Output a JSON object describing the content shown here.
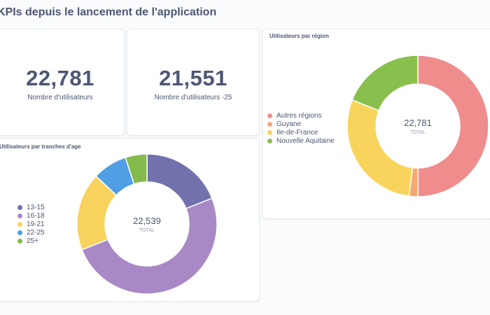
{
  "page": {
    "title": "KPIs depuis le lancement de l'application"
  },
  "kpis": [
    {
      "value": "22,781",
      "label": "Nombre d'utilisateurs"
    },
    {
      "value": "21,551",
      "label": "Nombre d'utilisateurs -25"
    }
  ],
  "age_chart": {
    "title": "Utilisateurs par tranches d'age",
    "total": "22,539",
    "total_label": "TOTAL",
    "legend": [
      {
        "label": "13-15",
        "color": "#7172ad"
      },
      {
        "label": "16-18",
        "color": "#a989c5"
      },
      {
        "label": "19-21",
        "color": "#f7d35e"
      },
      {
        "label": "22-25",
        "color": "#509ee3"
      },
      {
        "label": "25+",
        "color": "#84bb4c"
      }
    ]
  },
  "region_chart": {
    "title": "Utilisateurs par région",
    "total": "22,781",
    "total_label": "TOTAL",
    "legend": [
      {
        "label": "Autres régions",
        "color": "#ef8c8c"
      },
      {
        "label": "Guyane",
        "color": "#f2a86f"
      },
      {
        "label": "Ile-de-France",
        "color": "#f9d45c"
      },
      {
        "label": "Nouvelle Aquitaine",
        "color": "#88bf4d"
      }
    ]
  },
  "chart_data": [
    {
      "type": "pie",
      "title": "Utilisateurs par tranches d'age",
      "categories": [
        "13-15",
        "16-18",
        "19-21",
        "22-25",
        "25+"
      ],
      "values": [
        4282,
        11270,
        4057,
        1803,
        1127
      ],
      "total": 22539
    },
    {
      "type": "pie",
      "title": "Utilisateurs par région",
      "categories": [
        "Autres régions",
        "Guyane",
        "Ile-de-France",
        "Nouvelle Aquitaine"
      ],
      "values": [
        11391,
        456,
        6607,
        4327
      ],
      "total": 22781
    }
  ]
}
